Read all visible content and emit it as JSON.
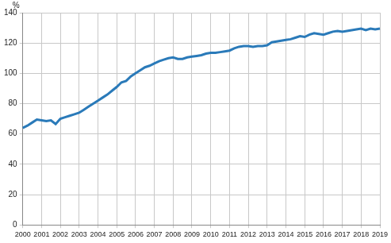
{
  "chart_data": {
    "type": "line",
    "ylabel": "%",
    "categories": [
      "2000",
      null,
      null,
      null,
      "2001",
      null,
      null,
      null,
      "2002",
      null,
      null,
      null,
      "2003",
      null,
      null,
      null,
      "2004",
      null,
      null,
      null,
      "2005",
      null,
      null,
      null,
      "2006",
      null,
      null,
      null,
      "2007",
      null,
      null,
      null,
      "2008",
      null,
      null,
      null,
      "2009",
      null,
      null,
      null,
      "2010",
      null,
      null,
      null,
      "2011",
      null,
      null,
      null,
      "2012",
      null,
      null,
      null,
      "2013",
      null,
      null,
      null,
      "2014",
      null,
      null,
      null,
      "2015",
      null,
      null,
      null,
      "2016",
      null,
      null,
      null,
      "2017",
      null,
      null,
      null,
      "2018",
      null,
      null,
      null,
      "2019"
    ],
    "values": [
      64,
      65.5,
      67.5,
      69.5,
      69,
      68.5,
      69,
      66.5,
      70,
      71,
      72,
      73,
      74,
      76,
      78,
      80,
      82,
      84,
      86,
      88.5,
      91,
      94,
      95,
      98,
      100,
      102,
      104,
      105,
      106.5,
      108,
      109,
      110,
      110.5,
      109.5,
      109.5,
      110.5,
      111,
      111.5,
      112,
      113,
      113.5,
      113.5,
      114,
      114.5,
      115,
      116.5,
      117.5,
      118,
      118,
      117.5,
      118,
      118,
      118.5,
      120.5,
      121,
      121.5,
      122,
      122.5,
      123.5,
      124.5,
      124,
      125.5,
      126.5,
      126,
      125.5,
      126.5,
      127.5,
      128,
      127.5,
      128,
      128.5,
      129,
      129.5,
      128.5,
      129.5,
      129,
      129.5
    ],
    "color": "#2a7ab9",
    "ylim": [
      0,
      140
    ],
    "yticks": [
      0,
      20,
      40,
      60,
      80,
      100,
      120,
      140
    ],
    "grid": true
  }
}
